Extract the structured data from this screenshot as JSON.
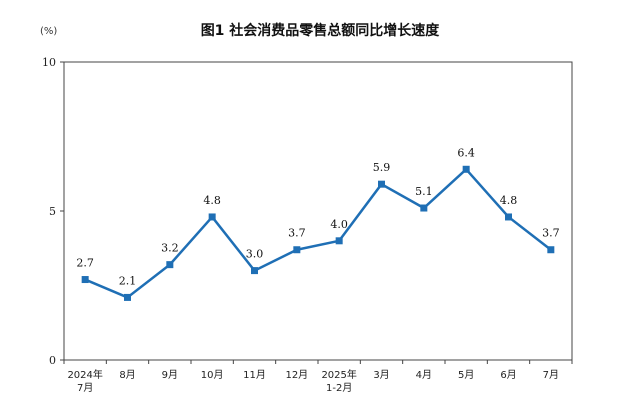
{
  "chart_data": {
    "type": "line",
    "title": "图1  社会消费品零售总额同比增长速度",
    "unit": "(%)",
    "categories": [
      [
        "2024年",
        "7月"
      ],
      [
        "8月"
      ],
      [
        "9月"
      ],
      [
        "10月"
      ],
      [
        "11月"
      ],
      [
        "12月"
      ],
      [
        "2025年",
        "1-2月"
      ],
      [
        "3月"
      ],
      [
        "4月"
      ],
      [
        "5月"
      ],
      [
        "6月"
      ],
      [
        "7月"
      ]
    ],
    "values": [
      2.7,
      2.1,
      3.2,
      4.8,
      3.0,
      3.7,
      4.0,
      5.9,
      5.1,
      6.4,
      4.8,
      3.7
    ],
    "value_labels": [
      "2.7",
      "2.1",
      "3.2",
      "4.8",
      "3.0",
      "3.7",
      "4.0",
      "5.9",
      "5.1",
      "6.4",
      "4.8",
      "3.7"
    ],
    "ylim": [
      0,
      10
    ],
    "yticks": [
      0,
      5,
      10
    ],
    "ytick_labels": [
      "0",
      "5",
      "10"
    ],
    "grid": false,
    "line_color": "#1f6fb5"
  }
}
